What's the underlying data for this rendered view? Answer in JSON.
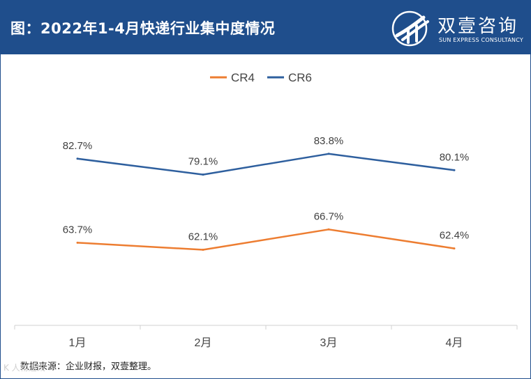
{
  "header": {
    "title": "图：2022年1-4月快递行业集中度情况",
    "brand_name": "双壹咨询",
    "brand_sub": "SUN EXPRESS CONSULTANCY",
    "bg_color": "#1f4e8c"
  },
  "chart_data": {
    "type": "line",
    "title": "2022年1-4月快递行业集中度情况",
    "categories": [
      "1月",
      "2月",
      "3月",
      "4月"
    ],
    "series": [
      {
        "name": "CR4",
        "color": "#ed7d31",
        "values": [
          63.7,
          62.1,
          66.7,
          62.4
        ],
        "labels": [
          "63.7%",
          "62.1%",
          "66.7%",
          "62.4%"
        ]
      },
      {
        "name": "CR6",
        "color": "#2e5f9e",
        "values": [
          82.7,
          79.1,
          83.8,
          80.1
        ],
        "labels": [
          "82.7%",
          "79.1%",
          "83.8%",
          "80.1%"
        ]
      }
    ],
    "ylim": [
      45,
      100
    ],
    "grid": false,
    "legend": "top-center",
    "xlabel": "",
    "ylabel": ""
  },
  "footer": {
    "source": "数据来源：企业财报，双壹整理。",
    "watermark": "K 人物通讯"
  }
}
